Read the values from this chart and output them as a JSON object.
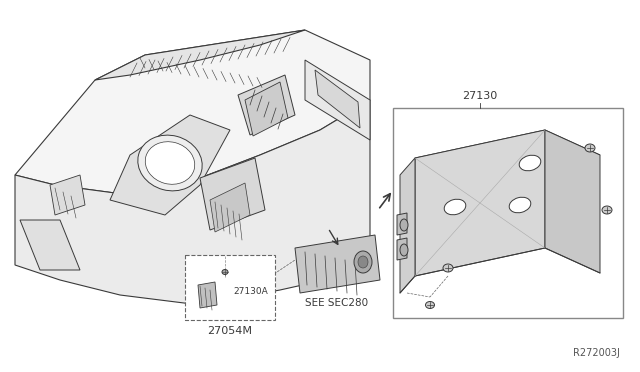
{
  "bg_color": "#ffffff",
  "lc": "#3a3a3a",
  "lc_thin": "#555555",
  "fig_width": 6.4,
  "fig_height": 3.72,
  "dpi": 100,
  "label_27130": "27130",
  "label_27054M": "27054M",
  "label_27130A": "27130A",
  "label_secsec": "SEE SEC280",
  "label_ref": "R272003J"
}
